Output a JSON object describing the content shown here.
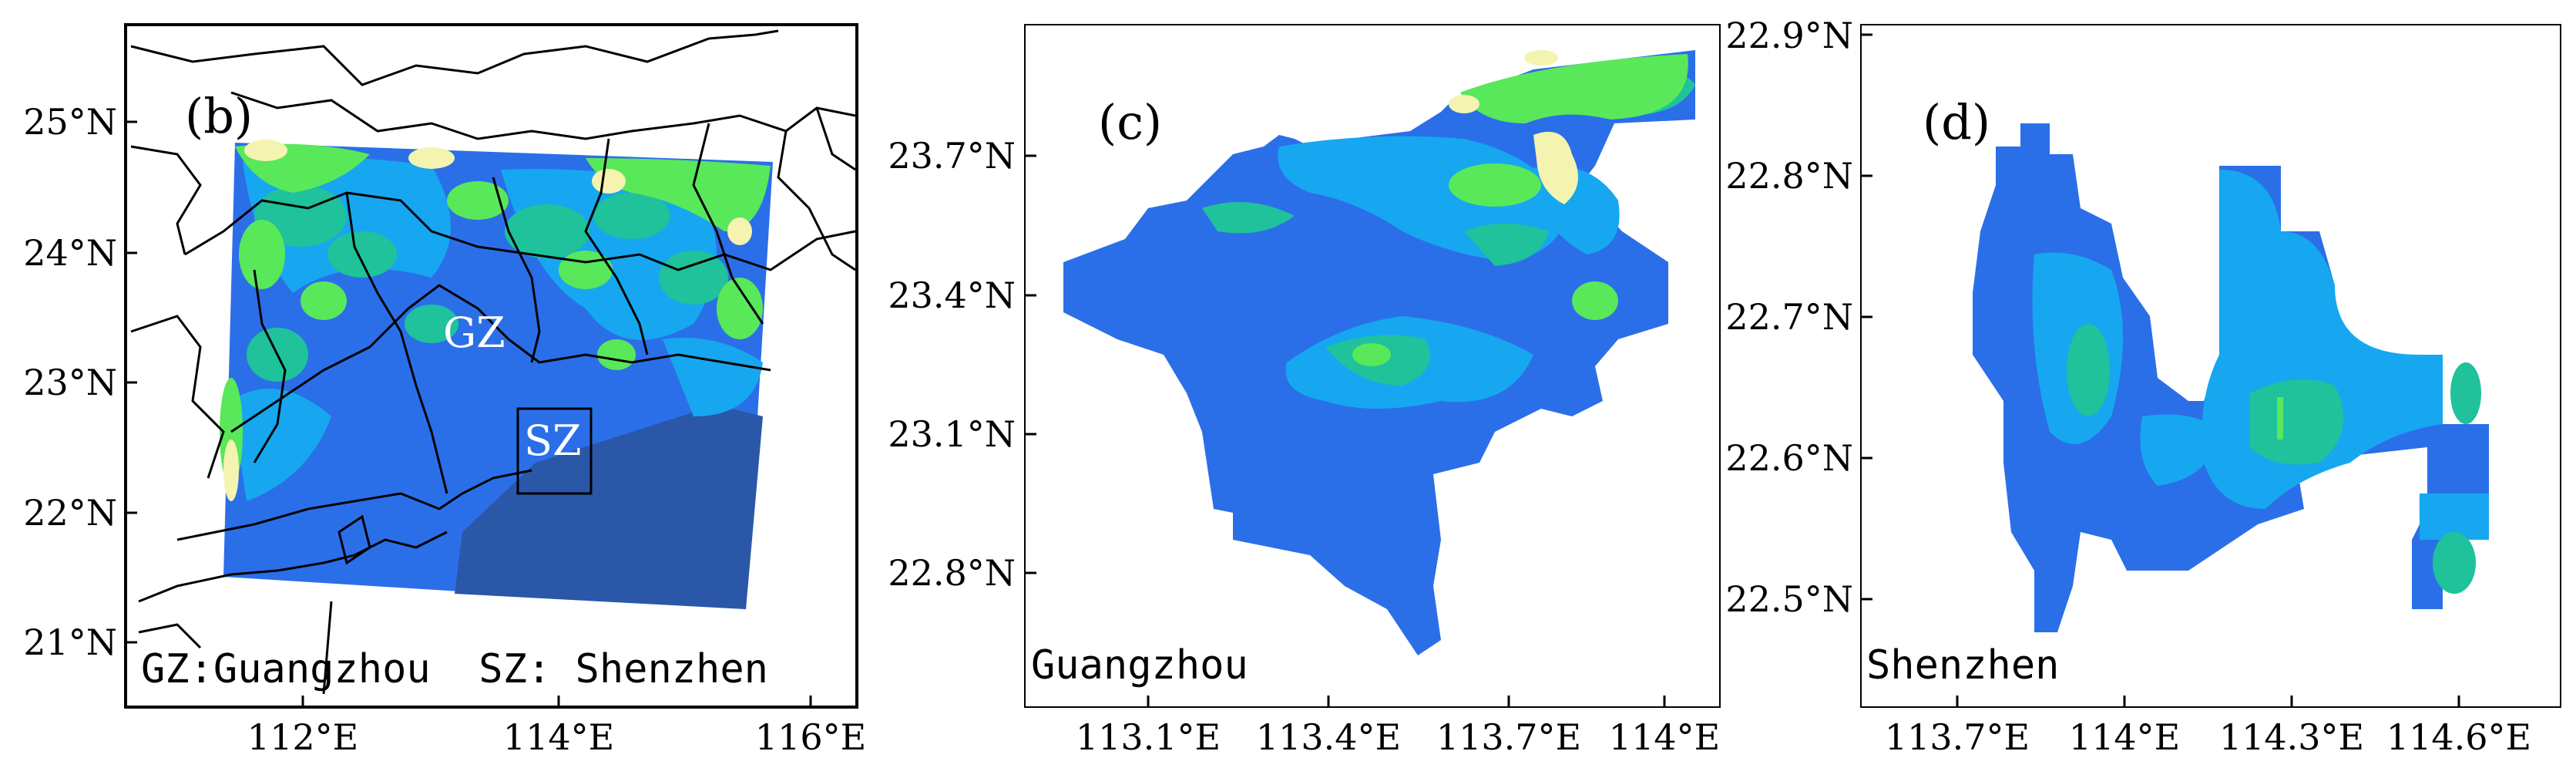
{
  "colors": {
    "land_yellow": "#f5f3b0",
    "bright_green": "#58e85a",
    "teal_green": "#1fc29a",
    "cyan": "#16a7f0",
    "blue": "#2b6fe8",
    "dark_blue": "#2a57a8",
    "frame": "#000000"
  },
  "panels": [
    {
      "id": "b",
      "label": "(b)",
      "caption": "GZ:Guangzhou  SZ: Shenzhen",
      "city_labels": [
        "GZ",
        "SZ"
      ],
      "y_ticks": [
        "25°N",
        "24°N",
        "23°N",
        "22°N",
        "21°N"
      ],
      "x_ticks": [
        "112°E",
        "114°E",
        "116°E"
      ]
    },
    {
      "id": "c",
      "label": "(c)",
      "caption": "Guangzhou",
      "y_ticks": [
        "23.7°N",
        "23.4°N",
        "23.1°N",
        "22.8°N"
      ],
      "x_ticks": [
        "113.1°E",
        "113.4°E",
        "113.7°E",
        "114°E"
      ]
    },
    {
      "id": "d",
      "label": "(d)",
      "caption": "Shenzhen",
      "y_ticks": [
        "22.9°N",
        "22.8°N",
        "22.7°N",
        "22.6°N",
        "22.5°N"
      ],
      "x_ticks": [
        "113.7°E",
        "114°E",
        "114.3°E",
        "114.6°E"
      ]
    }
  ]
}
